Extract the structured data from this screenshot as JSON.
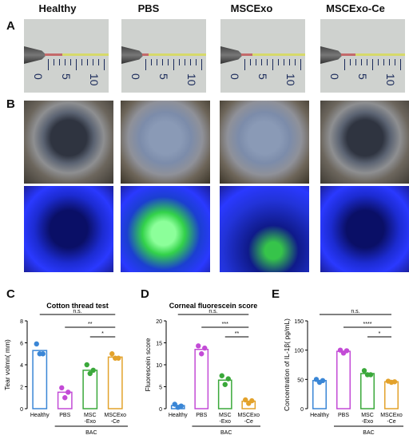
{
  "panels": {
    "a": "A",
    "b": "B",
    "c": "C",
    "d": "D",
    "e": "E"
  },
  "columns": [
    "Healthy",
    "PBS",
    "MSCExo",
    "MSCExo-Ce"
  ],
  "ruler_ticks": [
    "0",
    "5",
    "10"
  ],
  "charts_meta": {
    "bac_label": "BAC",
    "ns": "n.s.",
    "sig_double": "**",
    "sig_single": "*",
    "sig_triple": "***",
    "sig_quad": "****"
  },
  "chart_data": [
    {
      "type": "bar",
      "title": "Cotton thread test",
      "ylabel": "Tear volmn( mm)",
      "categories": [
        "Healthy",
        "PBS",
        "MSC\n-Exo",
        "MSCExo\n-Ce"
      ],
      "values": [
        5.3,
        1.5,
        3.5,
        4.7
      ],
      "points": [
        [
          5.9,
          5.0,
          5.0
        ],
        [
          1.9,
          1.0,
          1.5
        ],
        [
          4.0,
          3.2,
          3.5
        ],
        [
          5.0,
          4.6,
          4.6
        ]
      ],
      "colors": [
        "#3a86d6",
        "#c34bd6",
        "#3aa83a",
        "#e3a22b"
      ],
      "ylim": [
        0,
        8
      ],
      "yticks": [
        0,
        2,
        4,
        6,
        8
      ],
      "annotations": [
        {
          "from": 0,
          "to": 3,
          "label": "n.s."
        },
        {
          "from": 1,
          "to": 3,
          "label": "**"
        },
        {
          "from": 2,
          "to": 3,
          "label": "*"
        }
      ]
    },
    {
      "type": "bar",
      "title": "Corneal fluorescein score",
      "ylabel": "Fluorescein score",
      "categories": [
        "Healthy",
        "PBS",
        "MSC\n-Exo",
        "MSCExo\n-Ce"
      ],
      "values": [
        0.7,
        13.5,
        6.5,
        1.7
      ],
      "points": [
        [
          1.0,
          0.3,
          0.6
        ],
        [
          14.3,
          12.5,
          13.8
        ],
        [
          7.5,
          5.5,
          6.8
        ],
        [
          2.0,
          1.2,
          1.8
        ]
      ],
      "colors": [
        "#3a86d6",
        "#c34bd6",
        "#3aa83a",
        "#e3a22b"
      ],
      "ylim": [
        0,
        20
      ],
      "yticks": [
        0,
        5,
        10,
        15,
        20
      ],
      "annotations": [
        {
          "from": 0,
          "to": 3,
          "label": "n.s."
        },
        {
          "from": 1,
          "to": 3,
          "label": "***"
        },
        {
          "from": 2,
          "to": 3,
          "label": "**"
        }
      ]
    },
    {
      "type": "bar",
      "title": "",
      "ylabel": "Concentration of IL-1β( pg/mL)",
      "categories": [
        "Healthy",
        "PBS",
        "MSC\n-Exo",
        "MSCExo\n-Ce"
      ],
      "values": [
        48,
        98,
        60,
        46
      ],
      "points": [
        [
          50,
          45,
          48
        ],
        [
          100,
          95,
          99
        ],
        [
          65,
          58,
          58
        ],
        [
          47,
          45,
          46
        ]
      ],
      "colors": [
        "#3a86d6",
        "#c34bd6",
        "#3aa83a",
        "#e3a22b"
      ],
      "ylim": [
        0,
        150
      ],
      "yticks": [
        0,
        50,
        100,
        150
      ],
      "annotations": [
        {
          "from": 0,
          "to": 3,
          "label": "n.s."
        },
        {
          "from": 1,
          "to": 3,
          "label": "****"
        },
        {
          "from": 2,
          "to": 3,
          "label": "*"
        }
      ]
    }
  ]
}
